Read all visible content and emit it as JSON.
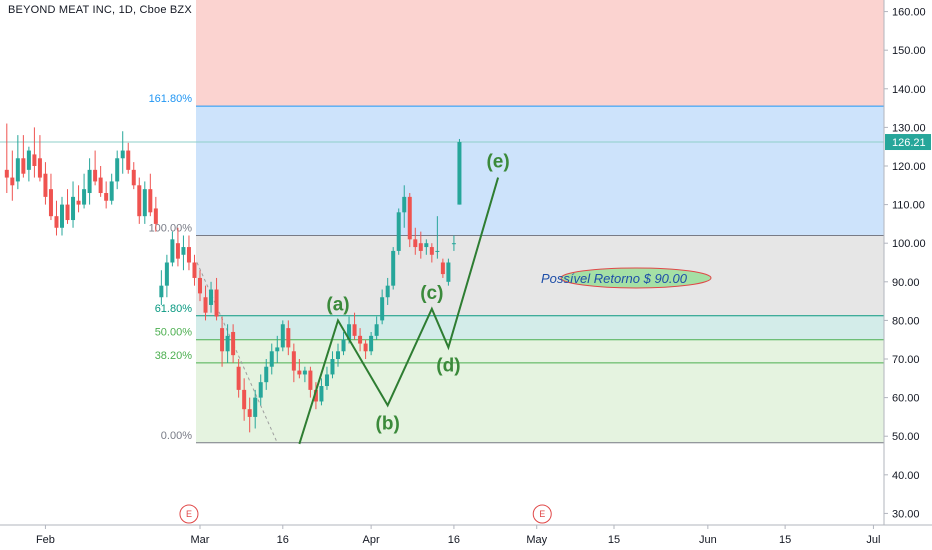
{
  "header": {
    "symbol_title": "BEYOND MEAT INC, 1D, Cboe BZX"
  },
  "colors": {
    "bull": "#26a69a",
    "bear": "#ef5350",
    "wave_line": "#2e7d32",
    "wave_label": "#3b8a3b",
    "note_fill": "#a5e0a5",
    "note_border": "#e04848",
    "note_text": "#1f4fa8",
    "event_marker": "#e04848",
    "last_price_tag": "#26a69a",
    "zone_red": "#fbd3d0",
    "zone_blue": "#cde3fb",
    "zone_grey": "#e6e6e6",
    "zone_teal": "#d3ece9",
    "zone_green": "#e5f3e0"
  },
  "last_price_tag": {
    "label": "126.21",
    "value": 126.21
  },
  "event_markers": [
    {
      "label": "E",
      "date": "Mar 1"
    },
    {
      "label": "E",
      "date": "May 6"
    }
  ],
  "note_label": "Possível Retorno $ 90.00",
  "chart_data": {
    "type": "candlestick",
    "title": "BEYOND MEAT INC, 1D, Cboe BZX",
    "xlabel": "",
    "ylabel": "",
    "ylim": [
      27,
      163
    ],
    "y_ticks": [
      "30.00",
      "40.00",
      "50.00",
      "60.00",
      "70.00",
      "80.00",
      "90.00",
      "100.00",
      "110.00",
      "120.00",
      "130.00",
      "140.00",
      "150.00",
      "160.00"
    ],
    "y_tick_values": [
      30,
      40,
      50,
      60,
      70,
      80,
      90,
      100,
      110,
      120,
      130,
      140,
      150,
      160
    ],
    "x_ticks": [
      "Feb",
      "Mar",
      "16",
      "Apr",
      "16",
      "May",
      "15",
      "Jun",
      "15",
      "Jul"
    ],
    "x_tick_days": [
      -28,
      0,
      15,
      31,
      46,
      61,
      75,
      92,
      106,
      122
    ],
    "grid": false,
    "last_price": 126.21,
    "fibonacci": {
      "levels": [
        {
          "label": "161.80%",
          "value": 135.5,
          "color": "#2196f3"
        },
        {
          "label": "100.00%",
          "value": 102.0,
          "color": "#787b86"
        },
        {
          "label": "61.80%",
          "value": 81.2,
          "color": "#089981"
        },
        {
          "label": "50.00%",
          "value": 75.0,
          "color": "#4caf50"
        },
        {
          "label": "38.20%",
          "value": 69.0,
          "color": "#4caf50"
        },
        {
          "label": "0.00%",
          "value": 48.3,
          "color": "#787b86"
        }
      ],
      "zones": [
        {
          "from": 135.5,
          "to": 163,
          "color": "#fbd3d0"
        },
        {
          "from": 102.0,
          "to": 135.5,
          "color": "#cde3fb"
        },
        {
          "from": 81.2,
          "to": 102.0,
          "color": "#e6e6e6"
        },
        {
          "from": 75.0,
          "to": 81.2,
          "color": "#d3ece9"
        },
        {
          "from": 48.3,
          "to": 75.0,
          "color": "#e5f3e0"
        }
      ],
      "start_day": 0
    },
    "elliott_wave": {
      "points": [
        {
          "day": 18,
          "value": 48.0,
          "label": ""
        },
        {
          "day": 25,
          "value": 80.0,
          "label": "(a)"
        },
        {
          "day": 34,
          "value": 58.0,
          "label": "(b)"
        },
        {
          "day": 42,
          "value": 83.0,
          "label": "(c)"
        },
        {
          "day": 45,
          "value": 73.0,
          "label": "(d)"
        },
        {
          "day": 54,
          "value": 117.0,
          "label": "(e)"
        }
      ]
    },
    "candles": [
      {
        "day": -35,
        "o": 119,
        "h": 131,
        "l": 113,
        "c": 117
      },
      {
        "day": -34,
        "o": 117,
        "h": 124,
        "l": 111,
        "c": 115
      },
      {
        "day": -33,
        "o": 116,
        "h": 128,
        "l": 114,
        "c": 122
      },
      {
        "day": -32,
        "o": 122,
        "h": 128,
        "l": 117,
        "c": 118
      },
      {
        "day": -31,
        "o": 119,
        "h": 125,
        "l": 116,
        "c": 124
      },
      {
        "day": -30,
        "o": 123,
        "h": 130,
        "l": 117,
        "c": 120
      },
      {
        "day": -29,
        "o": 122,
        "h": 128,
        "l": 116,
        "c": 117
      },
      {
        "day": -28,
        "o": 118,
        "h": 121,
        "l": 110,
        "c": 112
      },
      {
        "day": -27,
        "o": 114,
        "h": 118,
        "l": 106,
        "c": 107
      },
      {
        "day": -26,
        "o": 107,
        "h": 111,
        "l": 102,
        "c": 104
      },
      {
        "day": -25,
        "o": 104,
        "h": 112,
        "l": 102,
        "c": 110
      },
      {
        "day": -24,
        "o": 110,
        "h": 114,
        "l": 105,
        "c": 106
      },
      {
        "day": -23,
        "o": 106,
        "h": 116,
        "l": 104,
        "c": 112
      },
      {
        "day": -22,
        "o": 111,
        "h": 115,
        "l": 108,
        "c": 110
      },
      {
        "day": -21,
        "o": 110,
        "h": 118,
        "l": 109,
        "c": 114
      },
      {
        "day": -20,
        "o": 113,
        "h": 122,
        "l": 110,
        "c": 119
      },
      {
        "day": -19,
        "o": 119,
        "h": 124,
        "l": 115,
        "c": 116
      },
      {
        "day": -18,
        "o": 117,
        "h": 120,
        "l": 112,
        "c": 113
      },
      {
        "day": -17,
        "o": 113,
        "h": 116,
        "l": 109,
        "c": 111
      },
      {
        "day": -16,
        "o": 111,
        "h": 118,
        "l": 110,
        "c": 116
      },
      {
        "day": -15,
        "o": 116,
        "h": 124,
        "l": 114,
        "c": 122
      },
      {
        "day": -14,
        "o": 122,
        "h": 129,
        "l": 118,
        "c": 124
      },
      {
        "day": -13,
        "o": 124,
        "h": 126,
        "l": 118,
        "c": 119
      },
      {
        "day": -12,
        "o": 119,
        "h": 121,
        "l": 114,
        "c": 115
      },
      {
        "day": -11,
        "o": 115,
        "h": 117,
        "l": 105,
        "c": 107
      },
      {
        "day": -10,
        "o": 107,
        "h": 116,
        "l": 105,
        "c": 114
      },
      {
        "day": -9,
        "o": 114,
        "h": 118,
        "l": 107,
        "c": 108
      },
      {
        "day": -8,
        "o": 109,
        "h": 112,
        "l": 103,
        "c": 105
      },
      {
        "day": -7,
        "o": 86,
        "h": 93,
        "l": 84,
        "c": 89
      },
      {
        "day": -6,
        "o": 89,
        "h": 97,
        "l": 86,
        "c": 95
      },
      {
        "day": -5,
        "o": 95,
        "h": 103,
        "l": 94,
        "c": 101
      },
      {
        "day": -4,
        "o": 100,
        "h": 104,
        "l": 94,
        "c": 96
      },
      {
        "day": -3,
        "o": 97,
        "h": 102,
        "l": 93,
        "c": 99
      },
      {
        "day": -2,
        "o": 99,
        "h": 102,
        "l": 93,
        "c": 95
      },
      {
        "day": -1,
        "o": 95,
        "h": 97,
        "l": 89,
        "c": 91
      },
      {
        "day": 0,
        "o": 91,
        "h": 93,
        "l": 85,
        "c": 87
      },
      {
        "day": 1,
        "o": 86,
        "h": 89,
        "l": 80,
        "c": 82
      },
      {
        "day": 2,
        "o": 84,
        "h": 90,
        "l": 82,
        "c": 88
      },
      {
        "day": 3,
        "o": 88,
        "h": 91,
        "l": 80,
        "c": 81
      },
      {
        "day": 4,
        "o": 78,
        "h": 81,
        "l": 68,
        "c": 72
      },
      {
        "day": 5,
        "o": 72,
        "h": 79,
        "l": 69,
        "c": 76
      },
      {
        "day": 6,
        "o": 77,
        "h": 79,
        "l": 69,
        "c": 71
      },
      {
        "day": 7,
        "o": 68,
        "h": 70,
        "l": 60,
        "c": 62
      },
      {
        "day": 8,
        "o": 62,
        "h": 65,
        "l": 54,
        "c": 57
      },
      {
        "day": 9,
        "o": 57,
        "h": 60,
        "l": 51,
        "c": 55
      },
      {
        "day": 10,
        "o": 55,
        "h": 62,
        "l": 52,
        "c": 60
      },
      {
        "day": 11,
        "o": 60,
        "h": 66,
        "l": 58,
        "c": 64
      },
      {
        "day": 12,
        "o": 64,
        "h": 70,
        "l": 62,
        "c": 68
      },
      {
        "day": 13,
        "o": 68,
        "h": 74,
        "l": 66,
        "c": 72
      },
      {
        "day": 14,
        "o": 72,
        "h": 76,
        "l": 69,
        "c": 73
      },
      {
        "day": 15,
        "o": 73,
        "h": 80,
        "l": 72,
        "c": 79
      },
      {
        "day": 16,
        "o": 78,
        "h": 80,
        "l": 71,
        "c": 73
      },
      {
        "day": 17,
        "o": 72,
        "h": 74,
        "l": 64,
        "c": 67
      },
      {
        "day": 18,
        "o": 67,
        "h": 70,
        "l": 65,
        "c": 66
      },
      {
        "day": 19,
        "o": 66,
        "h": 68,
        "l": 64,
        "c": 67
      },
      {
        "day": 20,
        "o": 67,
        "h": 68,
        "l": 60,
        "c": 62
      },
      {
        "day": 21,
        "o": 62,
        "h": 64,
        "l": 57,
        "c": 59
      },
      {
        "day": 22,
        "o": 59,
        "h": 65,
        "l": 58,
        "c": 63
      },
      {
        "day": 23,
        "o": 63,
        "h": 68,
        "l": 62,
        "c": 66
      },
      {
        "day": 24,
        "o": 66,
        "h": 72,
        "l": 65,
        "c": 70
      },
      {
        "day": 25,
        "o": 70,
        "h": 74,
        "l": 68,
        "c": 72
      },
      {
        "day": 26,
        "o": 72,
        "h": 77,
        "l": 71,
        "c": 75
      },
      {
        "day": 27,
        "o": 75,
        "h": 81,
        "l": 74,
        "c": 79
      },
      {
        "day": 28,
        "o": 79,
        "h": 82,
        "l": 75,
        "c": 76
      },
      {
        "day": 29,
        "o": 76,
        "h": 78,
        "l": 72,
        "c": 74
      },
      {
        "day": 30,
        "o": 74,
        "h": 75,
        "l": 70,
        "c": 72
      },
      {
        "day": 31,
        "o": 72,
        "h": 77,
        "l": 71,
        "c": 76
      },
      {
        "day": 32,
        "o": 76,
        "h": 81,
        "l": 75,
        "c": 79
      },
      {
        "day": 33,
        "o": 80,
        "h": 88,
        "l": 79,
        "c": 86
      },
      {
        "day": 34,
        "o": 86,
        "h": 91,
        "l": 84,
        "c": 89
      },
      {
        "day": 35,
        "o": 89,
        "h": 99,
        "l": 88,
        "c": 98
      },
      {
        "day": 36,
        "o": 98,
        "h": 109,
        "l": 97,
        "c": 108
      },
      {
        "day": 37,
        "o": 108,
        "h": 115,
        "l": 104,
        "c": 112
      },
      {
        "day": 38,
        "o": 112,
        "h": 113,
        "l": 99,
        "c": 101
      },
      {
        "day": 39,
        "o": 101,
        "h": 104,
        "l": 97,
        "c": 99
      },
      {
        "day": 40,
        "o": 100,
        "h": 103,
        "l": 96,
        "c": 98
      },
      {
        "day": 41,
        "o": 99,
        "h": 101,
        "l": 97,
        "c": 100
      },
      {
        "day": 42,
        "o": 99,
        "h": 100,
        "l": 95,
        "c": 97
      },
      {
        "day": 43,
        "o": 98,
        "h": 107,
        "l": 96,
        "c": 98
      },
      {
        "day": 44,
        "o": 95,
        "h": 96,
        "l": 91,
        "c": 92
      },
      {
        "day": 45,
        "o": 90,
        "h": 96,
        "l": 89,
        "c": 95
      },
      {
        "day": 46,
        "o": 100,
        "h": 102,
        "l": 98,
        "c": 100
      },
      {
        "day": 47,
        "o": 110,
        "h": 127,
        "l": 110,
        "c": 126.21
      }
    ]
  }
}
